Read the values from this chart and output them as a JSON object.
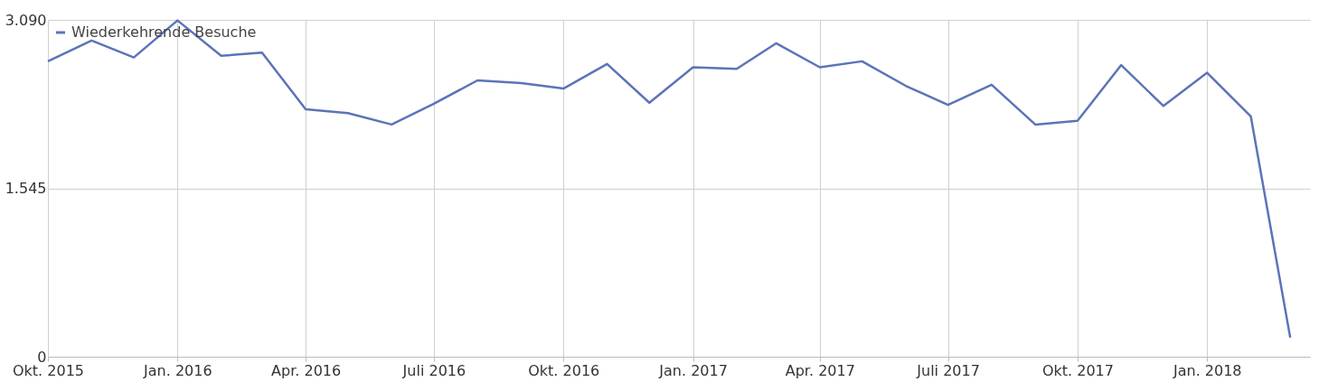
{
  "chart_data": {
    "type": "line",
    "x": [
      "2015-10",
      "2015-11",
      "2015-12",
      "2016-01",
      "2016-02",
      "2016-03",
      "2016-04",
      "2016-05",
      "2016-06",
      "2016-07",
      "2016-08",
      "2016-09",
      "2016-10",
      "2016-11",
      "2016-12",
      "2017-01",
      "2017-02",
      "2017-03",
      "2017-04",
      "2017-05",
      "2017-06",
      "2017-07",
      "2017-08",
      "2017-09",
      "2017-10",
      "2017-11",
      "2017-12",
      "2018-01",
      "2018-02",
      "2018-03"
    ],
    "series": [
      {
        "name": "Wiederkehrende Besuche",
        "color": "#5b74b8",
        "values": [
          2710,
          2900,
          2745,
          3085,
          2760,
          2790,
          2270,
          2235,
          2130,
          2320,
          2535,
          2510,
          2460,
          2685,
          2330,
          2655,
          2640,
          2875,
          2655,
          2710,
          2485,
          2310,
          2495,
          2130,
          2165,
          2675,
          2300,
          2605,
          2205,
          175
        ]
      }
    ],
    "xlim": [
      "2015-10-01",
      "2018-03-15"
    ],
    "xticks": [
      {
        "value": "2015-10",
        "label": "Okt. 2015"
      },
      {
        "value": "2016-01",
        "label": "Jan. 2016"
      },
      {
        "value": "2016-04",
        "label": "Apr. 2016"
      },
      {
        "value": "2016-07",
        "label": "Juli 2016"
      },
      {
        "value": "2016-10",
        "label": "Okt. 2016"
      },
      {
        "value": "2017-01",
        "label": "Jan. 2017"
      },
      {
        "value": "2017-04",
        "label": "Apr. 2017"
      },
      {
        "value": "2017-07",
        "label": "Juli 2017"
      },
      {
        "value": "2017-10",
        "label": "Okt. 2017"
      },
      {
        "value": "2018-01",
        "label": "Jan. 2018"
      }
    ],
    "ylim": [
      0,
      3090
    ],
    "yticks": [
      0,
      {
        "value": 1545,
        "label": "1.545"
      },
      {
        "value": 3090,
        "label": "3.090"
      }
    ],
    "grid": true,
    "legend": "top left",
    "marker": "none",
    "line_style": "solid"
  }
}
